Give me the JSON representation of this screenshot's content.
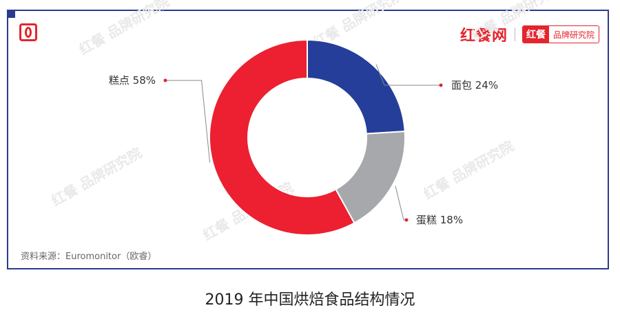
{
  "brand": {
    "name": "红餐网",
    "badge_red": "红餐",
    "badge_text": "品牌研究院"
  },
  "chart_data": {
    "type": "pie",
    "title": "2019 年中国烘焙食品结构情况",
    "source": "资料来源：Euromonitor（欧睿）",
    "slices": [
      {
        "name": "面包",
        "value": 24,
        "label": "面包 24%",
        "color": "#253e99"
      },
      {
        "name": "蛋糕",
        "value": 18,
        "label": "蛋糕 18%",
        "color": "#a6a8ab"
      },
      {
        "name": "糕点",
        "value": 58,
        "label": "糕点 58%",
        "color": "#ec2030"
      }
    ]
  },
  "watermark": "红餐 品牌研究院"
}
